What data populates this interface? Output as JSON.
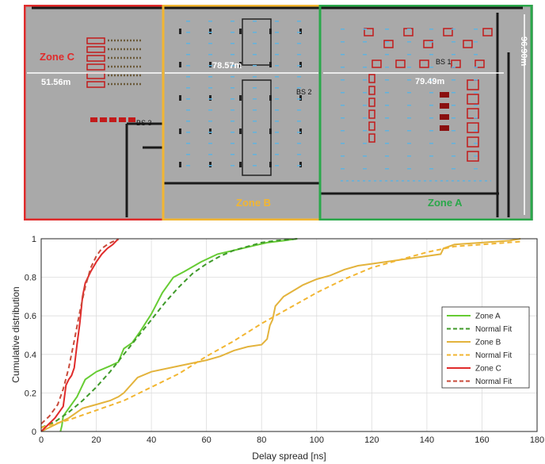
{
  "floor_plan": {
    "zones": [
      {
        "name": "Zone C",
        "color": "#e02b2b"
      },
      {
        "name": "Zone B",
        "color": "#f2b632"
      },
      {
        "name": "Zone A",
        "color": "#2aa84a"
      }
    ],
    "dimensions": {
      "zone_c_width": "51.56m",
      "zone_b_width": "78.57m",
      "zone_a_width": "79.49m",
      "height": "96.90m"
    },
    "base_stations": [
      "BS 1",
      "BS 2",
      "BS 3"
    ]
  },
  "chart_data": {
    "type": "line",
    "xlabel": "Delay spread [ns]",
    "ylabel": "Cumulative distribution",
    "xlim": [
      0,
      180
    ],
    "ylim": [
      0,
      1
    ],
    "xticks": [
      0,
      20,
      40,
      60,
      80,
      100,
      120,
      140,
      160,
      180
    ],
    "yticks": [
      0,
      0.2,
      0.4,
      0.6,
      0.8,
      1
    ],
    "grid": true,
    "legend_position": "right",
    "series": [
      {
        "name": "Zone A",
        "color": "#66cc33",
        "dash": "solid",
        "x": [
          7,
          7.5,
          8,
          10,
          13,
          16,
          20,
          25,
          28,
          30,
          33,
          36,
          40,
          44,
          48,
          52,
          58,
          64,
          70,
          76,
          82,
          88,
          93
        ],
        "y": [
          0,
          0.03,
          0.08,
          0.12,
          0.18,
          0.27,
          0.31,
          0.34,
          0.36,
          0.43,
          0.46,
          0.52,
          0.61,
          0.72,
          0.8,
          0.83,
          0.88,
          0.92,
          0.94,
          0.96,
          0.98,
          0.99,
          1.0
        ]
      },
      {
        "name": "Normal Fit",
        "color": "#3f9a2a",
        "dash": "dashed",
        "x": [
          0,
          5,
          10,
          15,
          20,
          25,
          30,
          35,
          40,
          45,
          50,
          55,
          60,
          65,
          70,
          75,
          80,
          85,
          90,
          93
        ],
        "y": [
          0.02,
          0.05,
          0.1,
          0.16,
          0.23,
          0.31,
          0.4,
          0.49,
          0.58,
          0.67,
          0.75,
          0.82,
          0.87,
          0.91,
          0.94,
          0.96,
          0.98,
          0.99,
          0.995,
          1.0
        ]
      },
      {
        "name": "Zone B",
        "color": "#e3b33c",
        "dash": "solid",
        "x": [
          0,
          10,
          15,
          20,
          25,
          28,
          30,
          35,
          40,
          50,
          60,
          65,
          70,
          75,
          80,
          82,
          83,
          84,
          85,
          88,
          95,
          100,
          105,
          110,
          115,
          120,
          130,
          140,
          145,
          146,
          150,
          160,
          170,
          174
        ],
        "y": [
          0,
          0.07,
          0.12,
          0.14,
          0.16,
          0.18,
          0.2,
          0.28,
          0.31,
          0.34,
          0.37,
          0.39,
          0.42,
          0.44,
          0.45,
          0.48,
          0.55,
          0.58,
          0.65,
          0.7,
          0.76,
          0.79,
          0.81,
          0.84,
          0.86,
          0.87,
          0.89,
          0.91,
          0.92,
          0.95,
          0.97,
          0.98,
          0.99,
          1.0
        ]
      },
      {
        "name": "Normal Fit",
        "color": "#f2b632",
        "dash": "dashed",
        "x": [
          0,
          10,
          20,
          30,
          40,
          50,
          60,
          70,
          80,
          90,
          100,
          110,
          120,
          130,
          140,
          150,
          160,
          174
        ],
        "y": [
          0.02,
          0.06,
          0.11,
          0.16,
          0.23,
          0.3,
          0.39,
          0.47,
          0.56,
          0.64,
          0.72,
          0.79,
          0.85,
          0.89,
          0.93,
          0.96,
          0.97,
          0.985
        ]
      },
      {
        "name": "Zone C",
        "color": "#e02b2b",
        "dash": "solid",
        "x": [
          0,
          5,
          8,
          9,
          10,
          11,
          12,
          13,
          14,
          15,
          16,
          17,
          18,
          20,
          22,
          24,
          26,
          28
        ],
        "y": [
          0,
          0.07,
          0.13,
          0.24,
          0.27,
          0.29,
          0.33,
          0.45,
          0.56,
          0.7,
          0.77,
          0.8,
          0.83,
          0.88,
          0.92,
          0.95,
          0.97,
          1.0
        ]
      },
      {
        "name": "Normal Fit",
        "color": "#c94a3a",
        "dash": "dashed",
        "x": [
          0,
          3,
          6,
          8,
          10,
          12,
          14,
          16,
          18,
          20,
          22,
          24,
          26,
          28
        ],
        "y": [
          0.04,
          0.08,
          0.14,
          0.22,
          0.33,
          0.47,
          0.62,
          0.75,
          0.85,
          0.91,
          0.95,
          0.97,
          0.985,
          0.995
        ]
      }
    ]
  }
}
